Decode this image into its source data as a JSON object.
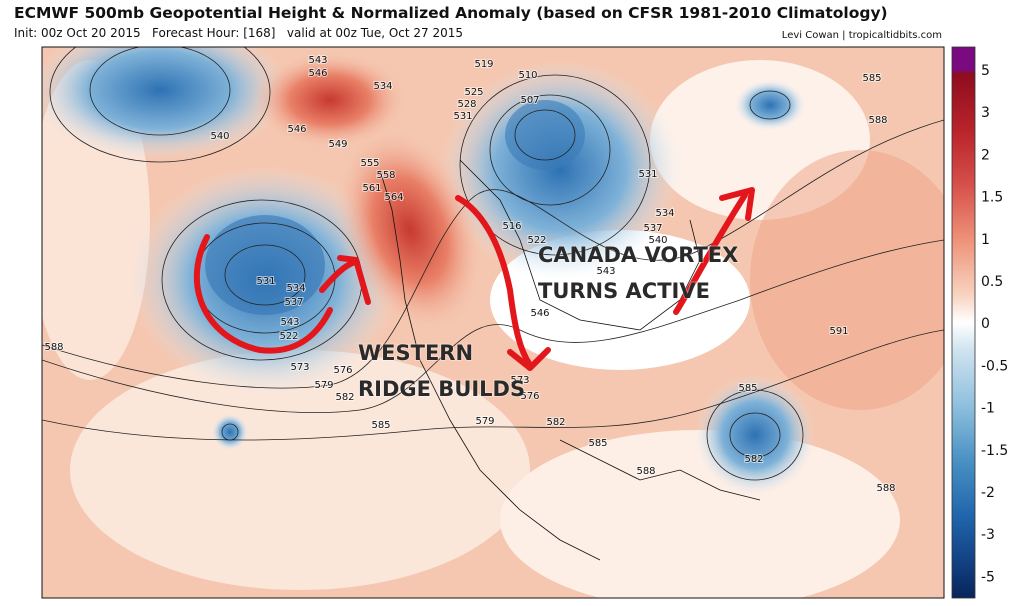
{
  "header": {
    "title": "ECMWF 500mb Geopotential Height & Normalized Anomaly (based on CFSR 1981-2010 Climatology)",
    "subtitle": "Init: 00z Oct 20 2015   Forecast Hour: [168]   valid at 00z Tue, Oct 27 2015",
    "credit": "Levi Cowan | tropicaltidbits.com"
  },
  "map": {
    "annotations": [
      "WESTERN",
      "RIDGE BUILDS",
      "CANADA VORTEX",
      "TURNS ACTIVE"
    ],
    "contour_labels": [
      543,
      546,
      534,
      519,
      510,
      525,
      507,
      528,
      531,
      540,
      546,
      549,
      555,
      558,
      561,
      564,
      531,
      585,
      588,
      534,
      537,
      540,
      516,
      522,
      543,
      531,
      534,
      537,
      543,
      522,
      546,
      588,
      573,
      576,
      579,
      582,
      591,
      573,
      576,
      579,
      582,
      585,
      585,
      585,
      582,
      588,
      588
    ]
  },
  "colorbar": {
    "labels": [
      5,
      3,
      2,
      1.5,
      1,
      0.5,
      0,
      -0.5,
      -1,
      -1.5,
      -2,
      -3,
      -5
    ]
  }
}
